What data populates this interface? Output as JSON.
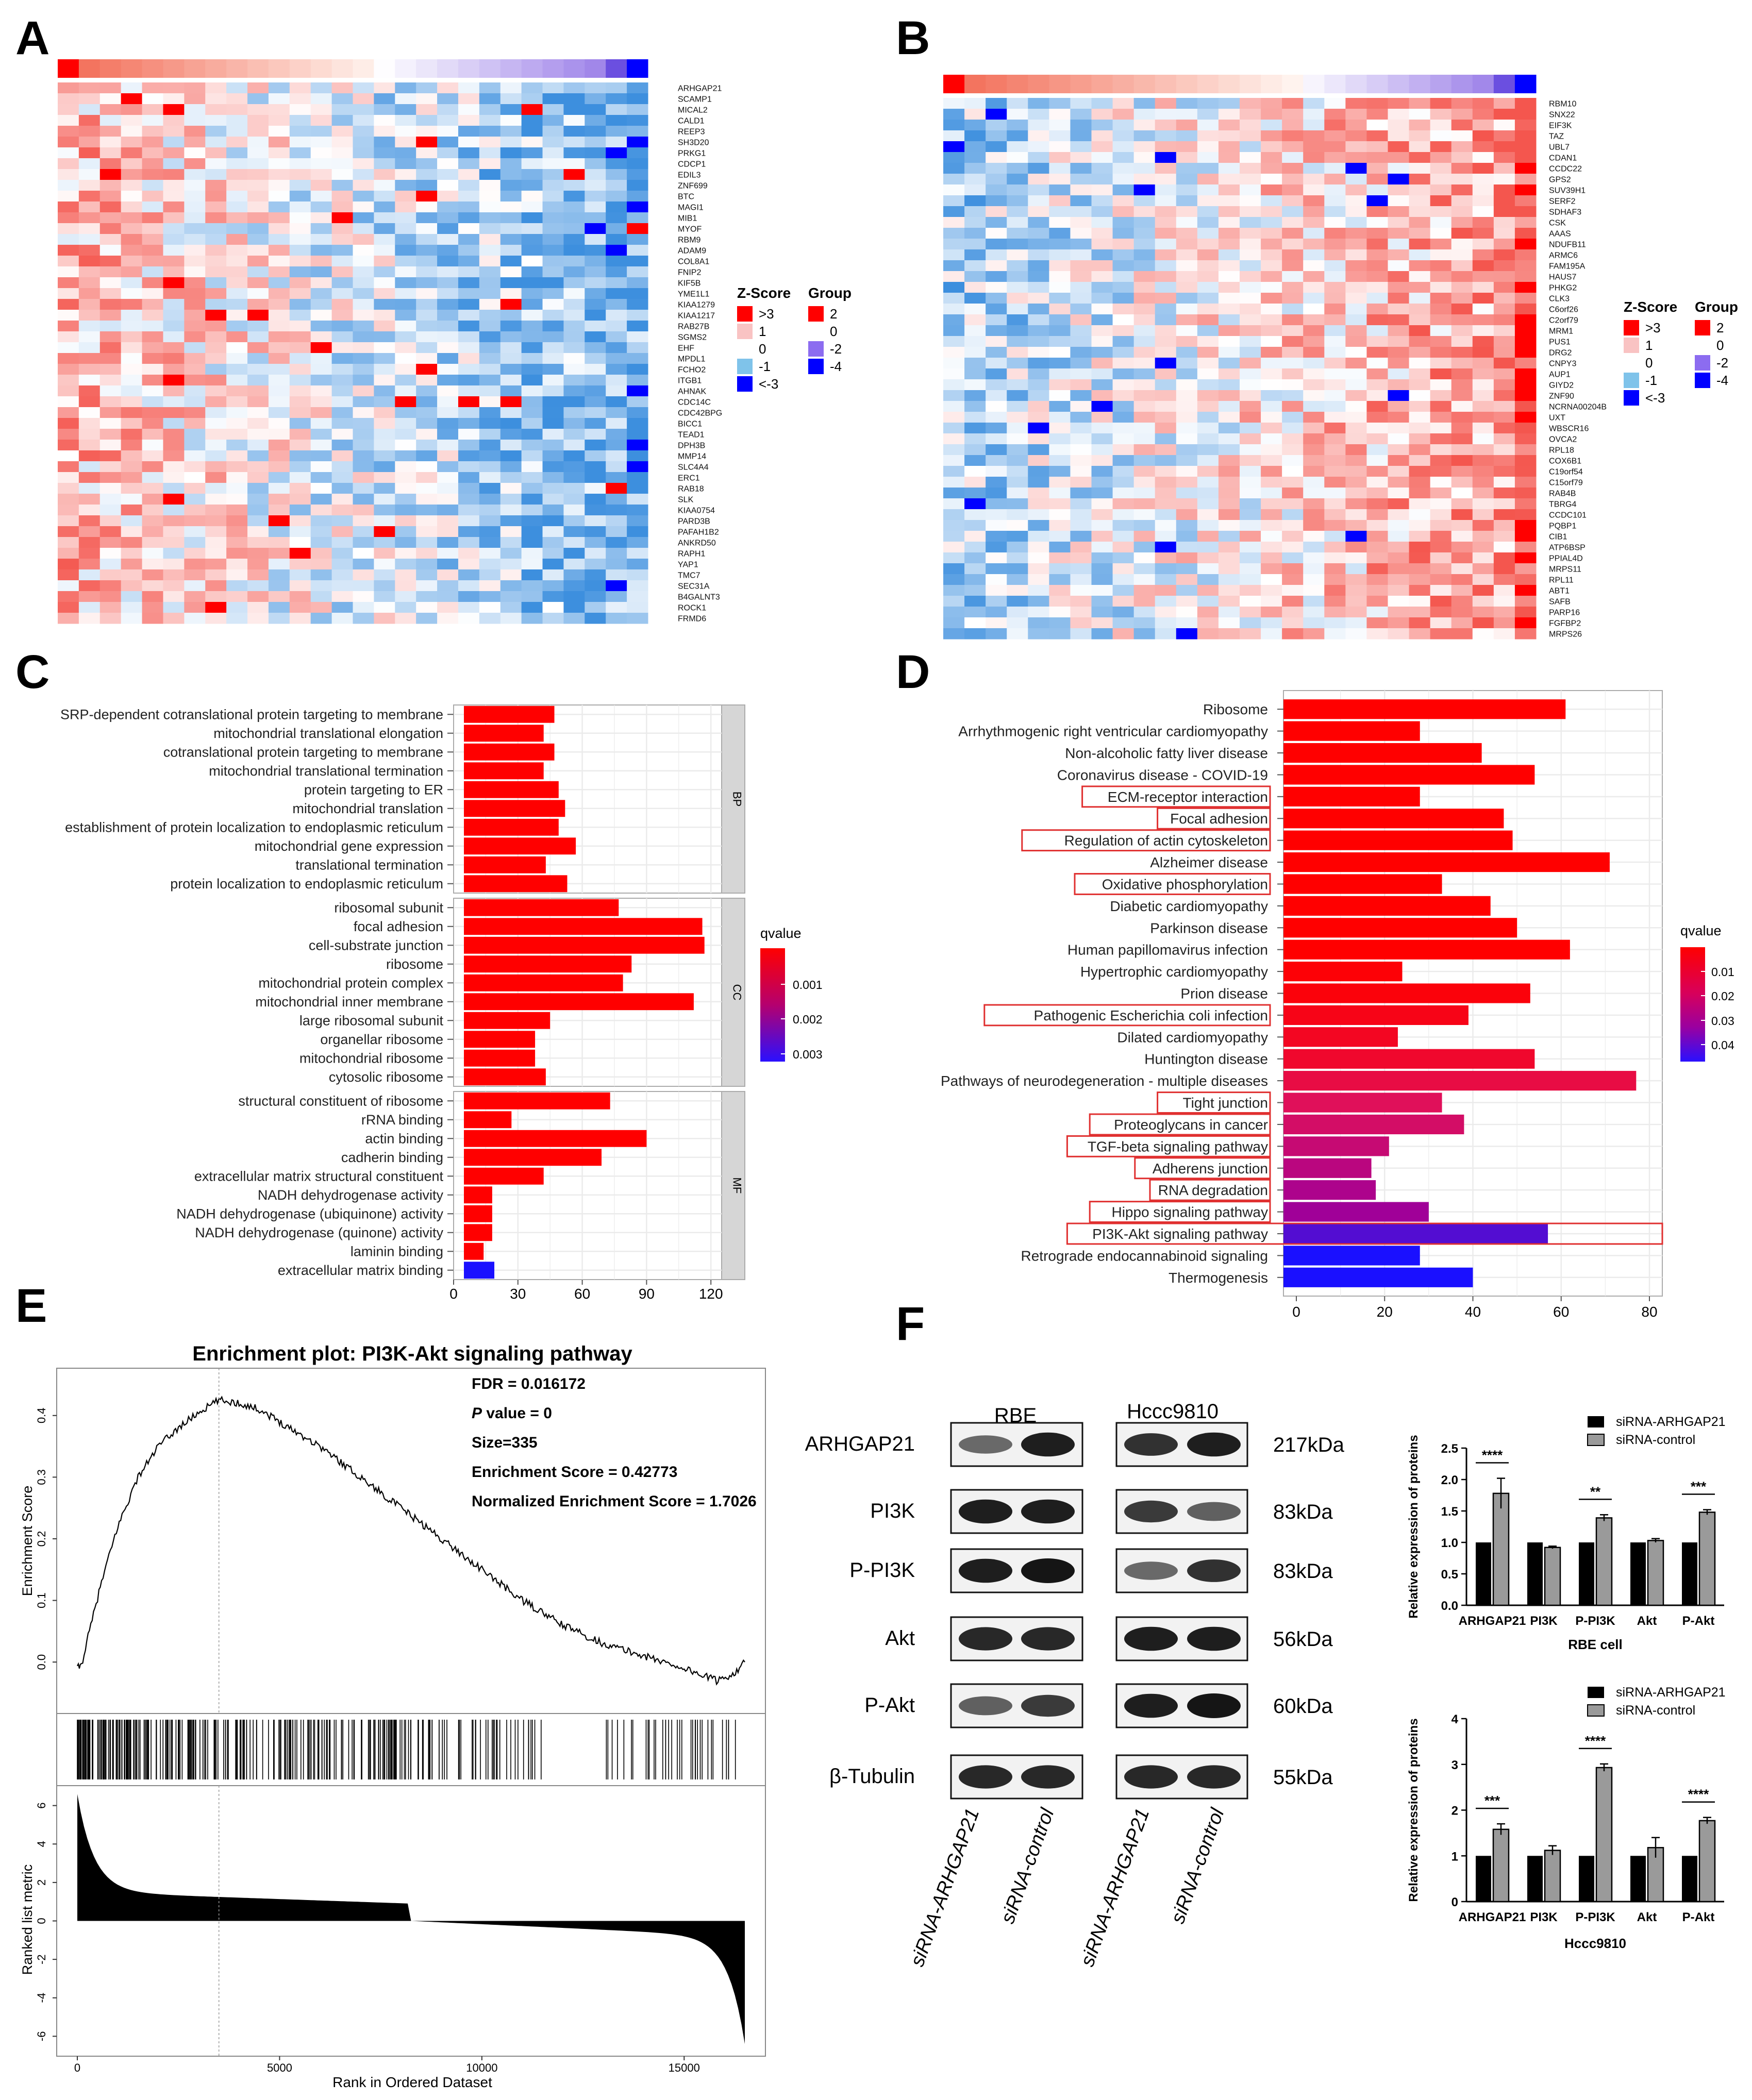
{
  "panel_letters": {
    "a": "A",
    "b": "B",
    "c": "C",
    "d": "D",
    "e": "E",
    "f": "F"
  },
  "colors": {
    "red": "#ff0000",
    "blue": "#0000ff",
    "magenta": "#cc0066",
    "outline": "#e03030",
    "heat_hi": "#e8463e",
    "heat_lo": "#2323e6"
  },
  "panelA": {
    "genes": [
      "ARHGAP21",
      "SCAMP1",
      "MICAL2",
      "CALD1",
      "REEP3",
      "SH3D20",
      "PRKG1",
      "CDCP1",
      "EDIL3",
      "ZNF699",
      "BTC",
      "MAGI1",
      "MIB1",
      "MYOF",
      "RBM9",
      "ADAM9",
      "COL8A1",
      "FNIP2",
      "KIF5B",
      "YME1L1",
      "KIAA1279",
      "KIAA1217",
      "RAB27B",
      "SGMS2",
      "EHF",
      "MPDL1",
      "FCHO2",
      "ITGB1",
      "AHNAK",
      "CDC14C",
      "CDC42BPG",
      "BICC1",
      "TEAD1",
      "DPH3B",
      "MMP14",
      "SLC4A4",
      "ERC1",
      "RAB18",
      "SLK",
      "KIAA0754",
      "PARD3B",
      "PAFAH1B2",
      "ANKRD50",
      "RAPH1",
      "YAP1",
      "TMC7",
      "SEC31A",
      "B4GALNT3",
      "ROCK1",
      "FRMD6"
    ],
    "legend": {
      "zscore_title": "Z-Score",
      "group_title": "Group",
      "zscore_items": [
        ">3",
        "1",
        "0",
        "-1",
        "<-3"
      ],
      "group_items": [
        "2",
        "0",
        "-2",
        "-4"
      ]
    }
  },
  "panelB": {
    "genes": [
      "RBM10",
      "SNX22",
      "EIF3K",
      "TAZ",
      "UBL7",
      "CDAN1",
      "CCDC22",
      "GPS2",
      "SUV39H1",
      "SERF2",
      "SDHAF3",
      "CSK",
      "AAAS",
      "NDUFB11",
      "ARMC6",
      "FAM195A",
      "HAUS7",
      "PHKG2",
      "CLK3",
      "C6orf26",
      "C2orf79",
      "MRM1",
      "PUS1",
      "DRG2",
      "CNPY3",
      "AUP1",
      "GIYD2",
      "ZNF90",
      "NCRNA00204B",
      "UXT",
      "WBSCR16",
      "OVCA2",
      "RPL18",
      "COX6B1",
      "C19orf54",
      "C15orf79",
      "RAB4B",
      "TBRG4",
      "CCDC101",
      "PQBP1",
      "CIB1",
      "ATP6BSP",
      "PPIAL4D",
      "MRPS11",
      "RPL11",
      "ABT1",
      "SAFB",
      "PARP16",
      "FGFBP2",
      "MRPS26"
    ],
    "legend": {
      "zscore_title": "Z-Score",
      "group_title": "Group",
      "zscore_items": [
        ">3",
        "1",
        "0",
        "-1",
        "<-3"
      ],
      "group_items": [
        "2",
        "0",
        "-2",
        "-4"
      ]
    }
  },
  "panelC": {
    "chart_data": {
      "type": "bar",
      "orientation": "horizontal",
      "xlabel": "",
      "xticks": [
        "0",
        "30",
        "60",
        "90",
        "120"
      ],
      "xlim": [
        0,
        125
      ],
      "facets": [
        {
          "name": "BP",
          "categories": [
            "SRP-dependent cotranslational protein targeting to membrane",
            "mitochondrial translational elongation",
            "cotranslational protein targeting to membrane",
            "mitochondrial translational termination",
            "protein targeting to ER",
            "mitochondrial translation",
            "establishment of protein localization to endoplasmic reticulum",
            "mitochondrial gene expression",
            "translational termination",
            "protein localization to endoplasmic reticulum"
          ],
          "values": [
            47,
            42,
            47,
            42,
            49,
            52,
            49,
            57,
            43,
            53
          ],
          "qvalues": [
            0.0001,
            0.0001,
            0.0001,
            0.0001,
            0.0001,
            0.0001,
            0.0001,
            0.0001,
            0.0001,
            0.0001
          ]
        },
        {
          "name": "CC",
          "categories": [
            "ribosomal subunit",
            "focal adhesion",
            "cell-substrate junction",
            "ribosome",
            "mitochondrial protein complex",
            "mitochondrial inner membrane",
            "large ribosomal subunit",
            "organellar ribosome",
            "mitochondrial ribosome",
            "cytosolic ribosome"
          ],
          "values": [
            77,
            116,
            117,
            83,
            79,
            112,
            45,
            38,
            38,
            43
          ],
          "qvalues": [
            0.0001,
            0.0001,
            0.0001,
            0.0001,
            0.0001,
            0.0001,
            0.0001,
            0.0001,
            0.0001,
            0.0001
          ]
        },
        {
          "name": "MF",
          "categories": [
            "structural constituent of ribosome",
            "rRNA binding",
            "actin binding",
            "cadherin binding",
            "extracellular matrix structural constituent",
            "NADH dehydrogenase activity",
            "NADH dehydrogenase (ubiquinone) activity",
            "NADH dehydrogenase (quinone) activity",
            "laminin binding",
            "extracellular matrix binding"
          ],
          "values": [
            73,
            27,
            90,
            69,
            42,
            18,
            18,
            18,
            14,
            19
          ],
          "qvalues": [
            0.0002,
            0.0002,
            0.0002,
            0.0002,
            0.0002,
            0.0002,
            0.0002,
            0.0002,
            0.0002,
            0.0035
          ]
        }
      ],
      "legend": {
        "title": "qvalue",
        "ticks": [
          "0.001",
          "0.002",
          "0.003"
        ]
      }
    }
  },
  "panelD": {
    "chart_data": {
      "type": "bar",
      "orientation": "horizontal",
      "xticks": [
        "0",
        "20",
        "40",
        "60",
        "80"
      ],
      "xlim": [
        0,
        80
      ],
      "categories": [
        "Ribosome",
        "Arrhythmogenic right ventricular cardiomyopathy",
        "Non-alcoholic fatty liver disease",
        "Coronavirus disease - COVID-19",
        "ECM-receptor interaction",
        "Focal adhesion",
        "Regulation of actin cytoskeleton",
        "Alzheimer disease",
        "Oxidative phosphorylation",
        "Diabetic cardiomyopathy",
        "Parkinson disease",
        "Human papillomavirus infection",
        "Hypertrophic cardiomyopathy",
        "Prion disease",
        "Pathogenic Escherichia coli infection",
        "Dilated cardiomyopathy",
        "Huntington disease",
        "Pathways of neurodegeneration - multiple diseases",
        "Tight junction",
        "Proteoglycans in cancer",
        "TGF-beta signaling pathway",
        "Adherens junction",
        "RNA degradation",
        "Hippo signaling pathway",
        "PI3K-Akt signaling pathway",
        "Retrograde endocannabinoid signaling",
        "Thermogenesis"
      ],
      "values": [
        61,
        28,
        42,
        54,
        28,
        47,
        49,
        71,
        33,
        44,
        50,
        62,
        24,
        53,
        39,
        23,
        54,
        77,
        33,
        38,
        21,
        17,
        18,
        30,
        57,
        28,
        40
      ],
      "qvalues": [
        0.001,
        0.001,
        0.0012,
        0.0014,
        0.0016,
        0.0018,
        0.002,
        0.0022,
        0.0025,
        0.003,
        0.0035,
        0.004,
        0.0045,
        0.005,
        0.006,
        0.007,
        0.008,
        0.01,
        0.012,
        0.014,
        0.016,
        0.018,
        0.02,
        0.022,
        0.03,
        0.045,
        0.045
      ],
      "highlighted": [
        4,
        5,
        6,
        8,
        14,
        18,
        19,
        20,
        21,
        22,
        23,
        24
      ],
      "legend": {
        "title": "qvalue",
        "ticks": [
          "0.01",
          "0.02",
          "0.03",
          "0.04"
        ]
      }
    }
  },
  "panelE": {
    "title": "Enrichment plot: PI3K-Akt signaling pathway",
    "stats": {
      "fdr": "FDR = 0.016172",
      "p_label": "P",
      "p_rest": " value = 0",
      "size": "Size=335",
      "es": "Enrichment Score = 0.42773",
      "nes": "Normalized Enrichment Score = 1.7026"
    },
    "chart_data": {
      "type": "line",
      "ylabel": "Enrichment Score",
      "yticks": [
        "0.0",
        "0.1",
        "0.2",
        "0.3",
        "0.4"
      ],
      "ylim": [
        -0.05,
        0.46
      ],
      "xlim": [
        0,
        16500
      ],
      "peak_rank": 3500,
      "peak_es": 0.42773,
      "es_points": [
        [
          0,
          -0.01
        ],
        [
          100,
          -0.005
        ],
        [
          300,
          0.05
        ],
        [
          600,
          0.13
        ],
        [
          1000,
          0.22
        ],
        [
          1500,
          0.3
        ],
        [
          2000,
          0.35
        ],
        [
          2500,
          0.38
        ],
        [
          3000,
          0.405
        ],
        [
          3500,
          0.425
        ],
        [
          4000,
          0.42
        ],
        [
          4500,
          0.41
        ],
        [
          5000,
          0.39
        ],
        [
          6000,
          0.35
        ],
        [
          7000,
          0.3
        ],
        [
          8000,
          0.25
        ],
        [
          9000,
          0.2
        ],
        [
          10000,
          0.15
        ],
        [
          11000,
          0.1
        ],
        [
          12000,
          0.06
        ],
        [
          13000,
          0.03
        ],
        [
          14000,
          0.01
        ],
        [
          15000,
          -0.01
        ],
        [
          15800,
          -0.03
        ],
        [
          16200,
          -0.02
        ],
        [
          16500,
          0.0
        ]
      ],
      "ranked": {
        "ylabel": "Ranked list metric",
        "yticks": [
          "6",
          "4",
          "2",
          "0",
          "-2",
          "-4",
          "-6"
        ],
        "ylim": [
          -6.5,
          6.5
        ],
        "xlabel": "Rank in Ordered Dataset",
        "xticks": [
          "0",
          "5000",
          "10000",
          "15000"
        ]
      }
    }
  },
  "panelF": {
    "blot": {
      "cell_lines": [
        "RBE",
        "Hccc9810"
      ],
      "proteins": [
        "ARHGAP21",
        "PI3K",
        "P-PI3K",
        "Akt",
        "P-Akt",
        "β-Tubulin"
      ],
      "sizes": [
        "217kDa",
        "83kDa",
        "83kDa",
        "56kDa",
        "60kDa",
        "55kDa"
      ],
      "lane_labels": [
        "siRNA-ARHGAP21",
        "siRNA-control",
        "siRNA-ARHGAP21",
        "siRNA-control"
      ]
    },
    "chart_data": [
      {
        "type": "bar",
        "title": "RBE cell",
        "ylabel": "Relative expression of proteins",
        "yticks": [
          "0.0",
          "0.5",
          "1.0",
          "1.5",
          "2.0",
          "2.5"
        ],
        "ylim": [
          0,
          2.5
        ],
        "categories": [
          "ARHGAP21",
          "PI3K",
          "P-PI3K",
          "Akt",
          "P-Akt"
        ],
        "series": [
          {
            "name": "siRNA-ARHGAP21",
            "values": [
              1,
              1,
              1,
              1,
              1
            ]
          },
          {
            "name": "siRNA-control",
            "values": [
              1.78,
              0.92,
              1.39,
              1.03,
              1.48
            ]
          }
        ],
        "errors": [
          0.24,
          0.02,
          0.05,
          0.03,
          0.04
        ],
        "significance": [
          "****",
          "",
          "**",
          "",
          "***"
        ]
      },
      {
        "type": "bar",
        "title": "Hccc9810",
        "ylabel": "Relative expression of proteins",
        "yticks": [
          "0",
          "1",
          "2",
          "3",
          "4"
        ],
        "ylim": [
          0,
          4
        ],
        "categories": [
          "ARHGAP21",
          "PI3K",
          "P-PI3K",
          "Akt",
          "P-Akt"
        ],
        "series": [
          {
            "name": "siRNA-ARHGAP21",
            "values": [
              1,
              1,
              1,
              1,
              1
            ]
          },
          {
            "name": "siRNA-control",
            "values": [
              1.58,
              1.12,
              2.93,
              1.18,
              1.77
            ]
          }
        ],
        "errors": [
          0.12,
          0.1,
          0.08,
          0.22,
          0.07
        ],
        "significance": [
          "***",
          "",
          "****",
          "",
          "****"
        ]
      }
    ]
  }
}
